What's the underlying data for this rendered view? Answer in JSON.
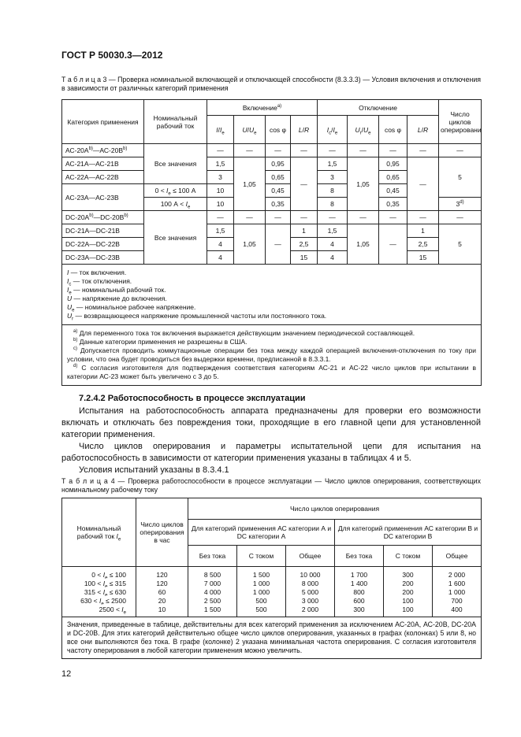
{
  "header": {
    "title": "ГОСТ Р 50030.3—2012"
  },
  "table3": {
    "caption": "Т а б л и ц а   3 — Проверка номинальной включающей и отключающей способности (8.3.3.3) — Условия включения и отключения в зависимости от различных категорий применения",
    "headers": {
      "category": "Категория применения",
      "current": "Номинальный рабочий ток",
      "make": [
        "Включение",
        {
          "sup": "a)"
        }
      ],
      "break": "Отключение",
      "cycles": [
        "Число циклов оперирования",
        {
          "sup": "c)"
        }
      ],
      "make_cols": [
        [
          {
            "i": "I"
          },
          "/",
          {
            "i": "I"
          },
          {
            "sub": "e"
          }
        ],
        [
          {
            "i": "U"
          },
          "/",
          {
            "i": "U"
          },
          {
            "sub": "e"
          }
        ],
        "cos φ",
        [
          {
            "i": "L"
          },
          "/",
          {
            "i": "R"
          }
        ]
      ],
      "break_cols": [
        [
          {
            "i": "I"
          },
          {
            "sub": "c"
          },
          "/",
          {
            "i": "I"
          },
          {
            "sub": "e"
          }
        ],
        [
          {
            "i": "U"
          },
          {
            "sub": "r"
          },
          "/",
          {
            "i": "U"
          },
          {
            "sub": "e"
          }
        ],
        "cos φ",
        [
          {
            "i": "L"
          },
          "/",
          {
            "i": "R"
          }
        ]
      ]
    },
    "rows": [
      [
        [
          "АС-20А",
          {
            "sup": "b)"
          },
          "—АС-20В",
          {
            "sup": "b)"
          }
        ],
        "Все значения",
        "—",
        "—",
        "—",
        "—",
        "—",
        "—",
        "—",
        "—",
        "—"
      ],
      [
        "АС-21А—АС-21В",
        "1,5",
        "1,05",
        "0,95",
        "—",
        "1,5",
        "1,05",
        "0,95",
        "—",
        "5"
      ],
      [
        "АС-22А—АС-22В",
        "3",
        "0,65",
        "3",
        "0,65"
      ],
      [
        "АС-23А—АС-23В",
        [
          "0 < ",
          {
            "i": "I"
          },
          {
            "sub": "e"
          },
          " ≤ 100 А"
        ],
        "10",
        "0,45",
        "8",
        "0,45"
      ],
      [
        [
          "100 А < ",
          {
            "i": "I"
          },
          {
            "sub": "e"
          }
        ],
        "10",
        "0,35",
        "8",
        "0,35",
        [
          "3",
          {
            "sup": "d)"
          }
        ]
      ],
      [
        [
          "DC-20А",
          {
            "sup": "b)"
          },
          "—DC-20В",
          {
            "sup": "b)"
          }
        ],
        "Все значения",
        "—",
        "—",
        "—",
        "—",
        "—",
        "—",
        "—",
        "—",
        "—"
      ],
      [
        "DC-21А—DC-21В",
        "1,5",
        "1,05",
        "—",
        "1",
        "1,5",
        "1,05",
        "—",
        "1",
        "5"
      ],
      [
        "DC-22А—DC-22В",
        "4",
        "2,5",
        "4",
        "2,5"
      ],
      [
        "DC-23А—DC-23В",
        "4",
        "15",
        "4",
        "15"
      ]
    ],
    "legend": [
      [
        {
          "i": "I"
        },
        " — ток включения."
      ],
      [
        {
          "i": "I"
        },
        {
          "sub": "c"
        },
        " — ток отключения."
      ],
      [
        {
          "i": "I"
        },
        {
          "sub": "e"
        },
        " — номинальный рабочий ток."
      ],
      [
        {
          "i": "U"
        },
        " — напряжение до включения."
      ],
      [
        {
          "i": "U"
        },
        {
          "sub": "e"
        },
        " — номинальное рабочее напряжение."
      ],
      [
        {
          "i": "U"
        },
        {
          "sub": "r"
        },
        " — возвращающееся напряжение промышленной частоты или постоянного тока."
      ]
    ],
    "footnotes": [
      [
        {
          "sup": "a)"
        },
        " Для переменного тока ток включения выражается действующим значением периодической составляющей."
      ],
      [
        {
          "sup": "b)"
        },
        " Данные категории применения не разрешены в США."
      ],
      [
        {
          "sup": "c)"
        },
        " Допускается проводить коммутационные операции без тока между каждой операцией включения-отключения по току при условии, что она будет проводиться без выдержки времени, предписанной в 8.3.3.1."
      ],
      [
        {
          "sup": "d)"
        },
        " С согласия изготовителя для подтверждения соответствия категориям АС-21 и АС-22 число циклов при испытании в категории АС-23 может быть увеличено с 3 до 5."
      ]
    ]
  },
  "section": {
    "heading": "7.2.4.2  Работоспособность в процессе эксплуатации",
    "paragraphs": [
      "Испытания на работоспособность аппарата предназначены для проверки его возможности включать и отключать без повреждения токи, проходящие в его главной цепи для установленной категории применения.",
      "Число циклов оперирования и параметры испытательной цепи для испытания на работоспособность в зависимости от категории применения указаны в таблицах 4 и 5.",
      "Условия испытаний указаны в 8.3.4.1"
    ]
  },
  "table4": {
    "caption": "Т а б л и ц а   4 — Проверка работоспособности в процессе эксплуатации — Число циклов оперирования, соответствующих номинальному рабочему току",
    "headers": {
      "current": [
        "Номинальный рабочий ток ",
        {
          "i": "I"
        },
        {
          "sub": "e"
        }
      ],
      "per_hour": "Число циклов оперирования в час",
      "cycles": "Число циклов оперирования",
      "group_a": "Для категорий применения АС категории А и DC категории А",
      "group_b": "Для категорий применения АС категории В и DC категории В",
      "sub": [
        "Без тока",
        "С током",
        "Общее",
        "Без тока",
        "С током",
        "Общее"
      ]
    },
    "rows": [
      [
        [
          "0 < ",
          {
            "i": "I"
          },
          {
            "sub": "e"
          },
          " ≤ 100"
        ],
        "120",
        "8 500",
        "1 500",
        "10 000",
        "1 700",
        "300",
        "2 000"
      ],
      [
        [
          "100 < ",
          {
            "i": "I"
          },
          {
            "sub": "e"
          },
          " ≤ 315"
        ],
        "120",
        "7 000",
        "1 000",
        "8 000",
        "1 400",
        "200",
        "1 600"
      ],
      [
        [
          "315 < ",
          {
            "i": "I"
          },
          {
            "sub": "e"
          },
          " ≤ 630"
        ],
        "60",
        "4 000",
        "1 000",
        "5 000",
        "800",
        "200",
        "1 000"
      ],
      [
        [
          "630 < ",
          {
            "i": "I"
          },
          {
            "sub": "e"
          },
          " ≤ 2500"
        ],
        "20",
        "2 500",
        "500",
        "3 000",
        "600",
        "100",
        "700"
      ],
      [
        [
          "2500 < ",
          {
            "i": "I"
          },
          {
            "sub": "e"
          }
        ],
        "10",
        "1 500",
        "500",
        "2 000",
        "300",
        "100",
        "400"
      ]
    ],
    "note": "Значения, приведенные в таблице, действительны для всех категорий применения за исключением АС-20А, АС-20В, DC-20А и DC-20В. Для этих категорий действительно общее число циклов оперирования, указанных в графах (колонках) 5 или 8, но все они выполняются без тока. В графе (колонке) 2 указана минимальная частота оперирования. С согласия изготовителя частоту оперирования в любой категории применения можно увеличить."
  },
  "footer": {
    "page_number": "12"
  }
}
